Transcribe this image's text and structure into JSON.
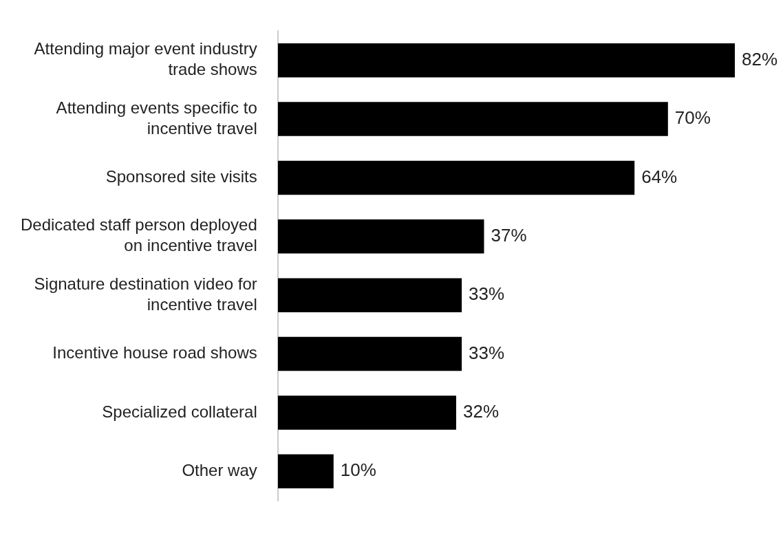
{
  "chart_data": {
    "type": "bar",
    "orientation": "horizontal",
    "categories": [
      "Attending major event industry trade shows",
      "Attending events specific to incentive travel",
      "Sponsored site visits",
      "Dedicated staff person deployed on incentive travel",
      "Signature destination video for incentive travel",
      "Incentive house road shows",
      "Specialized collateral",
      "Other way"
    ],
    "values": [
      82,
      70,
      64,
      37,
      33,
      33,
      32,
      10
    ],
    "value_labels": [
      "82%",
      "70%",
      "64%",
      "37%",
      "33%",
      "33%",
      "32%",
      "10%"
    ],
    "color": "#000000",
    "legend": false
  }
}
